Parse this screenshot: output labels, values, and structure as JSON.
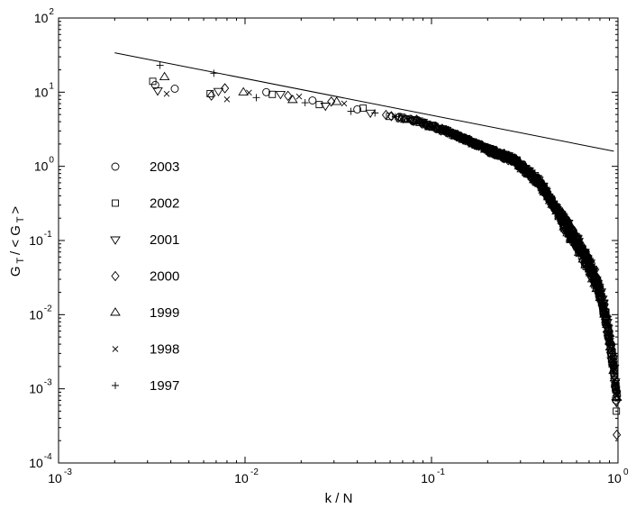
{
  "chart_data": {
    "type": "scatter",
    "x_scale": "log",
    "y_scale": "log",
    "xlim": [
      0.001,
      1
    ],
    "ylim": [
      0.0001,
      100
    ],
    "xlabel": "k / N",
    "ylabel": "G_T / < G_T >",
    "x_ticks": [
      {
        "value": 0.001,
        "base": "10",
        "exp": "-3"
      },
      {
        "value": 0.01,
        "base": "10",
        "exp": "-2"
      },
      {
        "value": 0.1,
        "base": "10",
        "exp": "-1"
      },
      {
        "value": 1,
        "base": "10",
        "exp": "0"
      }
    ],
    "y_ticks": [
      {
        "value": 0.0001,
        "base": "10",
        "exp": "-4"
      },
      {
        "value": 0.001,
        "base": "10",
        "exp": "-3"
      },
      {
        "value": 0.01,
        "base": "10",
        "exp": "-2"
      },
      {
        "value": 0.1,
        "base": "10",
        "exp": "-1"
      },
      {
        "value": 1,
        "base": "10",
        "exp": "0"
      },
      {
        "value": 10,
        "base": "10",
        "exp": "1"
      },
      {
        "value": 100,
        "base": "10",
        "exp": "2"
      }
    ],
    "legend_position": "left",
    "reference_line": {
      "x": [
        0.002,
        0.95
      ],
      "y": [
        34,
        1.6
      ]
    },
    "series": [
      {
        "name": "2003",
        "marker": "circle"
      },
      {
        "name": "2002",
        "marker": "square"
      },
      {
        "name": "2001",
        "marker": "triangle-down"
      },
      {
        "name": "2000",
        "marker": "diamond"
      },
      {
        "name": "1999",
        "marker": "triangle-up"
      },
      {
        "name": "1998",
        "marker": "cross"
      },
      {
        "name": "1997",
        "marker": "plus"
      }
    ],
    "curve": {
      "x": [
        0.0033,
        0.007,
        0.012,
        0.02,
        0.03,
        0.05,
        0.08,
        0.12,
        0.2,
        0.28,
        0.38,
        0.5,
        0.62,
        0.72,
        0.8,
        0.86,
        0.91,
        0.95,
        0.98
      ],
      "y": [
        11,
        10,
        9.2,
        8,
        6.8,
        5.3,
        4.2,
        3.0,
        1.7,
        1.2,
        0.6,
        0.2,
        0.08,
        0.04,
        0.02,
        0.009,
        0.004,
        0.0018,
        0.0008
      ]
    },
    "highlight_points": [
      {
        "series": "1997",
        "x": 0.0035,
        "y": 23
      },
      {
        "series": "1997",
        "x": 0.0068,
        "y": 18
      },
      {
        "series": "1999",
        "x": 0.0037,
        "y": 16
      },
      {
        "series": "2002",
        "x": 0.0032,
        "y": 14
      },
      {
        "series": "2003",
        "x": 0.0033,
        "y": 12.5
      },
      {
        "series": "2001",
        "x": 0.0034,
        "y": 10.5
      },
      {
        "series": "1998",
        "x": 0.0038,
        "y": 9.5
      },
      {
        "series": "2000",
        "x": 0.0066,
        "y": 9.0
      },
      {
        "series": "1998",
        "x": 0.008,
        "y": 8.0
      },
      {
        "series": "2002",
        "x": 0.98,
        "y": 0.0005
      },
      {
        "series": "2000",
        "x": 0.985,
        "y": 0.00024
      },
      {
        "series": "2003",
        "x": 0.975,
        "y": 0.0007
      }
    ]
  }
}
